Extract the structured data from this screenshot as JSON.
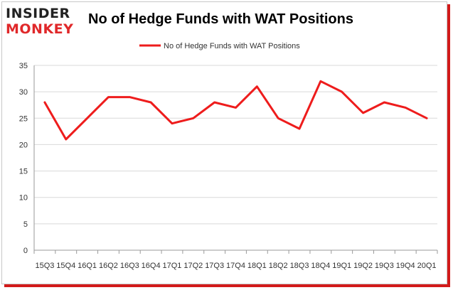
{
  "logo": {
    "line1": "INSIDER",
    "line2": "MONKEY"
  },
  "chart_data": {
    "type": "line",
    "title": "No of Hedge Funds with WAT Positions",
    "xlabel": "",
    "ylabel": "",
    "categories": [
      "15Q3",
      "15Q4",
      "16Q1",
      "16Q2",
      "16Q3",
      "16Q4",
      "17Q1",
      "17Q2",
      "17Q3",
      "17Q4",
      "18Q1",
      "18Q2",
      "18Q3",
      "18Q4",
      "19Q1",
      "19Q2",
      "19Q3",
      "19Q4",
      "20Q1"
    ],
    "series": [
      {
        "name": "No of Hedge Funds with WAT Positions",
        "values": [
          28,
          21,
          25,
          29,
          29,
          28,
          24,
          25,
          28,
          27,
          31,
          25,
          23,
          32,
          30,
          26,
          28,
          27,
          25
        ],
        "color": "#ee1c1c"
      }
    ],
    "ylim": [
      0,
      35
    ],
    "yticks": [
      0,
      5,
      10,
      15,
      20,
      25,
      30,
      35
    ],
    "grid": true,
    "legend": "top-center",
    "gridColor": "#d9d9d9",
    "axisColor": "#9a9a9a"
  }
}
